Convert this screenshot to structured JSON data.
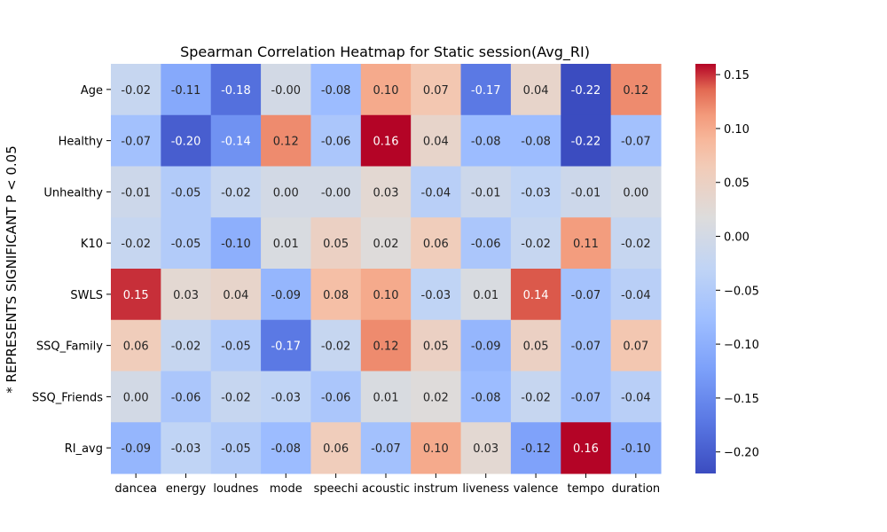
{
  "chart_data": {
    "type": "heatmap",
    "title": "Spearman Correlation Heatmap for Static session(Avg_RI)",
    "ylabel": "* REPRESENTS SIGNIFICANT P < 0.05",
    "xlabel": "",
    "rows": [
      "Age",
      "Healthy",
      "Unhealthy",
      "K10",
      "SWLS",
      "SSQ_Family",
      "SSQ_Friends",
      "RI_avg"
    ],
    "columns": [
      "dancea",
      "energy",
      "loudnes",
      "mode",
      "speechi",
      "acoustic",
      "instrum",
      "liveness",
      "valence",
      "tempo",
      "duration"
    ],
    "values": [
      [
        -0.02,
        -0.11,
        -0.18,
        -0.0,
        -0.08,
        0.1,
        0.07,
        -0.17,
        0.04,
        -0.22,
        0.12
      ],
      [
        -0.07,
        -0.2,
        -0.14,
        0.12,
        -0.06,
        0.16,
        0.04,
        -0.08,
        -0.08,
        -0.22,
        -0.07
      ],
      [
        -0.01,
        -0.05,
        -0.02,
        0.0,
        -0.0,
        0.03,
        -0.04,
        -0.01,
        -0.03,
        -0.01,
        0.0
      ],
      [
        -0.02,
        -0.05,
        -0.1,
        0.01,
        0.05,
        0.02,
        0.06,
        -0.06,
        -0.02,
        0.11,
        -0.02
      ],
      [
        0.15,
        0.03,
        0.04,
        -0.09,
        0.08,
        0.1,
        -0.03,
        0.01,
        0.14,
        -0.07,
        -0.04
      ],
      [
        0.06,
        -0.02,
        -0.05,
        -0.17,
        -0.02,
        0.12,
        0.05,
        -0.09,
        0.05,
        -0.07,
        0.07
      ],
      [
        0.0,
        -0.06,
        -0.02,
        -0.03,
        -0.06,
        0.01,
        0.02,
        -0.08,
        -0.02,
        -0.07,
        -0.04
      ],
      [
        -0.09,
        -0.03,
        -0.05,
        -0.08,
        0.06,
        -0.07,
        0.1,
        0.03,
        -0.12,
        0.16,
        -0.1
      ]
    ],
    "annotations": [
      [
        "-0.02",
        "-0.11",
        "-0.18",
        "-0.00",
        "-0.08",
        "0.10",
        "0.07",
        "-0.17",
        "0.04",
        "-0.22",
        "0.12"
      ],
      [
        "-0.07",
        "-0.20",
        "-0.14",
        "0.12",
        "-0.06",
        "0.16",
        "0.04",
        "-0.08",
        "-0.08",
        "-0.22",
        "-0.07"
      ],
      [
        "-0.01",
        "-0.05",
        "-0.02",
        "0.00",
        "-0.00",
        "0.03",
        "-0.04",
        "-0.01",
        "-0.03",
        "-0.01",
        "0.00"
      ],
      [
        "-0.02",
        "-0.05",
        "-0.10",
        "0.01",
        "0.05",
        "0.02",
        "0.06",
        "-0.06",
        "-0.02",
        "0.11",
        "-0.02"
      ],
      [
        "0.15",
        "0.03",
        "0.04",
        "-0.09",
        "0.08",
        "0.10",
        "-0.03",
        "0.01",
        "0.14",
        "-0.07",
        "-0.04"
      ],
      [
        "0.06",
        "-0.02",
        "-0.05",
        "-0.17",
        "-0.02",
        "0.12",
        "0.05",
        "-0.09",
        "0.05",
        "-0.07",
        "0.07"
      ],
      [
        "0.00",
        "-0.06",
        "-0.02",
        "-0.03",
        "-0.06",
        "0.01",
        "0.02",
        "-0.08",
        "-0.02",
        "-0.07",
        "-0.04"
      ],
      [
        "-0.09",
        "-0.03",
        "-0.05",
        "-0.08",
        "0.06",
        "-0.07",
        "0.10",
        "0.03",
        "-0.12",
        "0.16",
        "-0.10"
      ]
    ],
    "colormap": "coolwarm",
    "vmin": -0.22,
    "vmax": 0.16,
    "colorbar_ticks": [
      "0.15",
      "0.10",
      "0.05",
      "0.00",
      "−0.05",
      "−0.10",
      "−0.15",
      "−0.20"
    ],
    "colorbar_tick_values": [
      0.15,
      0.1,
      0.05,
      0.0,
      -0.05,
      -0.1,
      -0.15,
      -0.2
    ],
    "grid": false,
    "colors": {
      "cold": "#3b4cc0",
      "neutral": "#dddcdc",
      "warm": "#b40426",
      "text_dark": "#262626",
      "text_light": "#ffffff"
    }
  }
}
